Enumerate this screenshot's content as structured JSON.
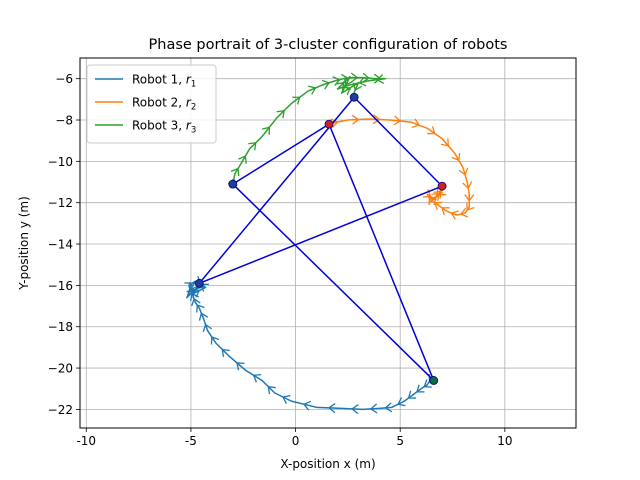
{
  "chart_data": {
    "type": "line",
    "title": "Phase portrait of 3-cluster configuration of robots",
    "xlabel": "X-position x (m)",
    "ylabel": "Y-position y (m)",
    "xlim": [
      -10.3,
      13.4
    ],
    "ylim": [
      -22.9,
      -5.0
    ],
    "xticks": [
      -10,
      -5,
      0,
      5,
      10
    ],
    "yticks": [
      -22,
      -20,
      -18,
      -16,
      -14,
      -12,
      -10,
      -8,
      -6
    ],
    "grid": true,
    "legend_position": "top-left",
    "series": [
      {
        "name": "Robot 1, r1",
        "legend_main": "Robot 1, ",
        "legend_sym": "r",
        "legend_sub": "1",
        "color": "#1f77b4",
        "x": [
          6.5,
          6.3,
          6.0,
          5.6,
          5.2,
          4.6,
          4.0,
          3.2,
          2.2,
          1.0,
          -0.2,
          -1.0,
          -1.6,
          -2.4,
          -3.2,
          -3.8,
          -4.2,
          -4.4,
          -4.6,
          -4.8,
          -4.9,
          -5.0,
          -5.1,
          -4.8,
          -5.2,
          -4.5,
          -4.9,
          -4.3,
          -4.7,
          -4.4
        ],
        "y": [
          -20.5,
          -20.8,
          -21.0,
          -21.3,
          -21.6,
          -21.9,
          -21.95,
          -22.0,
          -21.95,
          -21.9,
          -21.6,
          -21.2,
          -20.6,
          -20.1,
          -19.4,
          -18.8,
          -18.2,
          -17.6,
          -17.1,
          -16.8,
          -16.5,
          -16.3,
          -16.0,
          -15.8,
          -16.6,
          -15.9,
          -16.4,
          -16.1,
          -15.8,
          -16.0
        ]
      },
      {
        "name": "Robot 2, r2",
        "legend_main": "Robot 2, ",
        "legend_sym": "r",
        "legend_sub": "2",
        "color": "#ff7f0e",
        "x": [
          1.5,
          2.5,
          3.5,
          4.5,
          5.5,
          6.3,
          7.0,
          7.6,
          8.0,
          8.2,
          8.3,
          8.3,
          8.1,
          7.7,
          7.2,
          6.8,
          6.5,
          6.3,
          6.6,
          7.1,
          6.4,
          7.0,
          6.7,
          7.2
        ],
        "y": [
          -8.2,
          -8.0,
          -7.95,
          -8.0,
          -8.1,
          -8.4,
          -8.9,
          -9.6,
          -10.3,
          -11.0,
          -11.6,
          -12.2,
          -12.5,
          -12.6,
          -12.4,
          -12.1,
          -11.9,
          -11.6,
          -11.8,
          -11.3,
          -12.0,
          -11.5,
          -11.7,
          -11.2
        ]
      },
      {
        "name": "Robot 3, r3",
        "legend_main": "Robot 3, ",
        "legend_sym": "r",
        "legend_sub": "3",
        "color": "#2ca02c",
        "x": [
          -3.0,
          -2.9,
          -2.6,
          -2.2,
          -1.6,
          -0.9,
          -0.2,
          0.6,
          1.3,
          1.9,
          2.3,
          2.7,
          3.2,
          3.8,
          4.3,
          3.5,
          2.6,
          2.0,
          2.6,
          2.2,
          3.0,
          2.7
        ],
        "y": [
          -11.1,
          -10.6,
          -10.1,
          -9.4,
          -8.8,
          -7.9,
          -7.2,
          -6.6,
          -6.3,
          -6.1,
          -6.0,
          -5.95,
          -5.95,
          -6.0,
          -6.0,
          -6.1,
          -6.3,
          -6.5,
          -5.9,
          -6.7,
          -6.2,
          -6.9
        ]
      }
    ],
    "markers": [
      {
        "x": 6.6,
        "y": -20.6,
        "color": "#0a6b3a"
      },
      {
        "x": -4.6,
        "y": -15.9,
        "color": "#1f3f99"
      },
      {
        "x": 1.6,
        "y": -8.2,
        "color": "#cc2222"
      },
      {
        "x": 7.0,
        "y": -11.2,
        "color": "#cc2222"
      },
      {
        "x": -3.0,
        "y": -11.1,
        "color": "#1f3f99"
      },
      {
        "x": 2.8,
        "y": -6.9,
        "color": "#1f3f99"
      }
    ],
    "triangles": [
      {
        "color": "#0000dd",
        "vertices": [
          [
            6.6,
            -20.6
          ],
          [
            1.6,
            -8.2
          ],
          [
            -3.0,
            -11.1
          ]
        ]
      },
      {
        "color": "#0000dd",
        "vertices": [
          [
            -4.6,
            -15.9
          ],
          [
            2.8,
            -6.9
          ],
          [
            7.0,
            -11.2
          ]
        ]
      }
    ]
  }
}
